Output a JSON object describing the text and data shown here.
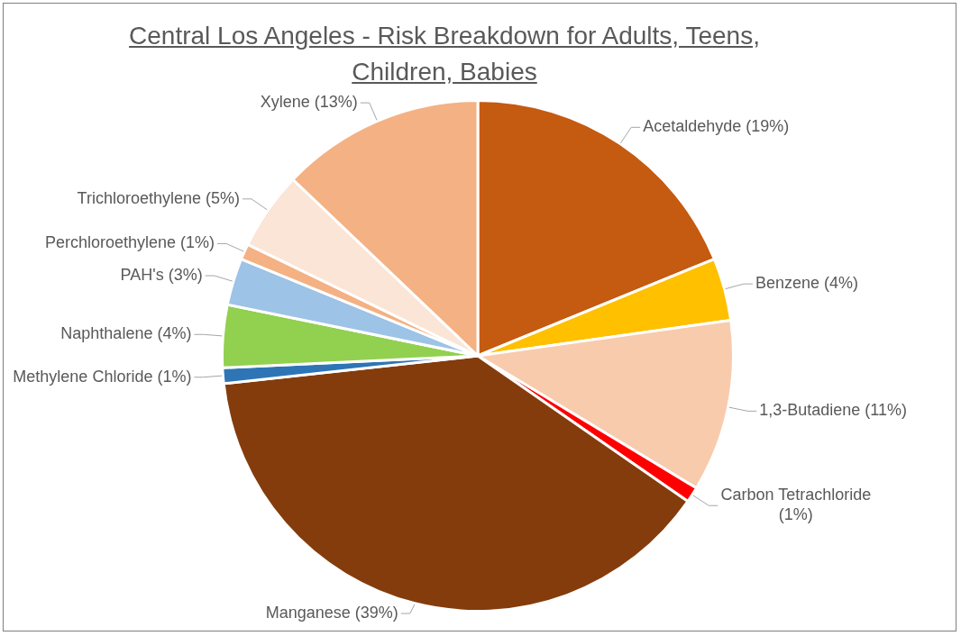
{
  "chart_data": {
    "type": "pie",
    "title": "Central Los Angeles - Risk Breakdown for Adults, Teens, Children, Babies",
    "categories": [
      "Acetaldehyde",
      "Benzene",
      "1,3-Butadiene",
      "Carbon Tetrachloride",
      "Manganese",
      "Methylene Chloride",
      "Naphthalene",
      "PAH's",
      "Perchloroethylene",
      "Trichloroethylene",
      "Xylene"
    ],
    "values": [
      19,
      4,
      11,
      1,
      39,
      1,
      4,
      3,
      1,
      5,
      13
    ],
    "value_labels": [
      "(19%)",
      "(4%)",
      "(11%)",
      "(1%)",
      "(39%)",
      "(1%)",
      "(4%)",
      "(3%)",
      "(1%)",
      "(5%)",
      "(13%)"
    ],
    "colors": [
      "#c55a11",
      "#ffc000",
      "#f8cbad",
      "#ff0000",
      "#843c0c",
      "#2e75b6",
      "#92d050",
      "#9dc3e6",
      "#f4b183",
      "#fbe5d6",
      "#f4b183"
    ]
  }
}
